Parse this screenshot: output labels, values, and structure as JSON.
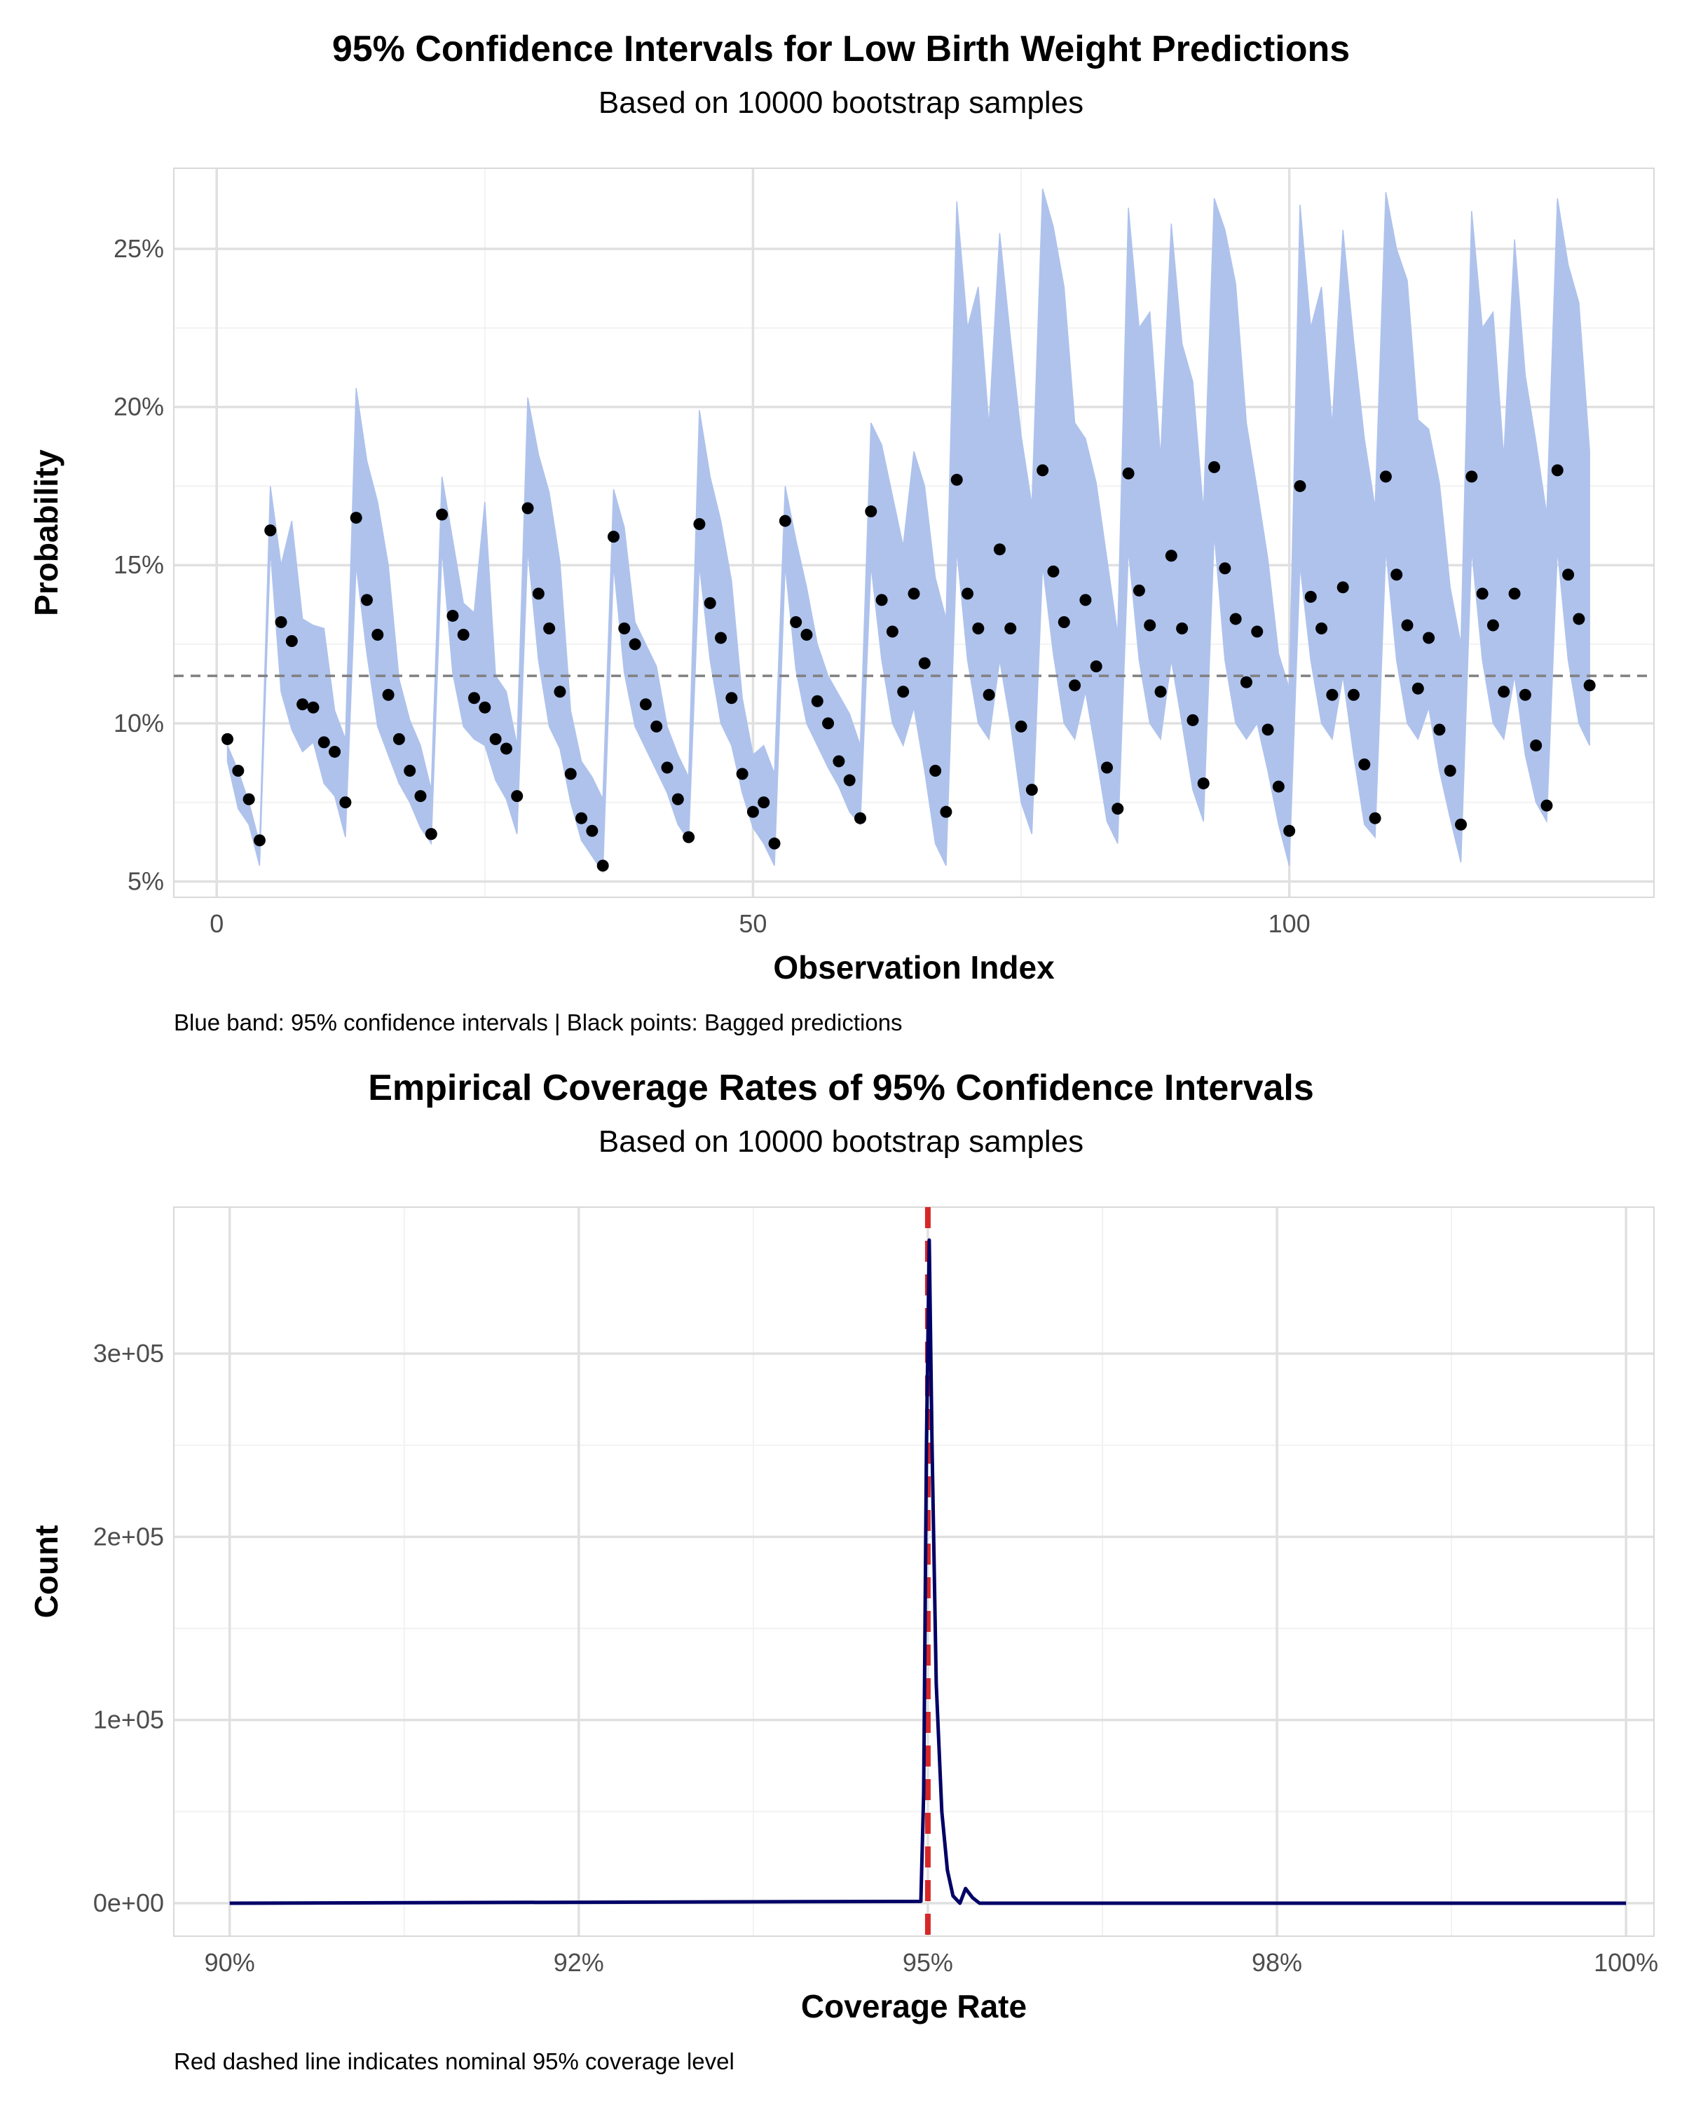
{
  "chart_data": [
    {
      "type": "scatter",
      "title": "95% Confidence Intervals for Low Birth Weight Predictions",
      "subtitle": "Based on 10000 bootstrap samples",
      "xlabel": "Observation Index",
      "ylabel": "Probability",
      "caption": "Blue band: 95% confidence intervals | Black points: Bagged predictions",
      "xlim": [
        -4,
        134
      ],
      "ylim": [
        0.045,
        0.2755
      ],
      "x_ticks": [
        0,
        50,
        100
      ],
      "x_tick_labels": [
        "0",
        "50",
        "100"
      ],
      "y_ticks": [
        0.05,
        0.1,
        0.15,
        0.2,
        0.25
      ],
      "y_tick_labels": [
        "5%",
        "10%",
        "15%",
        "20%",
        "25%"
      ],
      "reference_line": 0.115,
      "band_color": "#aec2ec",
      "point_color": "#000000",
      "refline_color": "#808080",
      "x": [
        1,
        2,
        3,
        4,
        5,
        6,
        7,
        8,
        9,
        10,
        11,
        12,
        13,
        14,
        15,
        16,
        17,
        18,
        19,
        20,
        21,
        22,
        23,
        24,
        25,
        26,
        27,
        28,
        29,
        30,
        31,
        32,
        33,
        34,
        35,
        36,
        37,
        38,
        39,
        40,
        41,
        42,
        43,
        44,
        45,
        46,
        47,
        48,
        49,
        50,
        51,
        52,
        53,
        54,
        55,
        56,
        57,
        58,
        59,
        60,
        61,
        62,
        63,
        64,
        65,
        66,
        67,
        68,
        69,
        70,
        71,
        72,
        73,
        74,
        75,
        76,
        77,
        78,
        79,
        80,
        81,
        82,
        83,
        84,
        85,
        86,
        87,
        88,
        89,
        90,
        91,
        92,
        93,
        94,
        95,
        96,
        97,
        98,
        99,
        100,
        101,
        102,
        103,
        104,
        105,
        106,
        107,
        108,
        109,
        110,
        111,
        112,
        113,
        114,
        115,
        116,
        117,
        118,
        119,
        120,
        121,
        122,
        123,
        124,
        125,
        126,
        127,
        128
      ],
      "prediction": [
        0.095,
        0.085,
        0.076,
        0.063,
        0.161,
        0.132,
        0.126,
        0.106,
        0.105,
        0.094,
        0.091,
        0.075,
        0.165,
        0.139,
        0.128,
        0.109,
        0.095,
        0.085,
        0.077,
        0.065,
        0.166,
        0.134,
        0.128,
        0.108,
        0.105,
        0.095,
        0.092,
        0.077,
        0.168,
        0.141,
        0.13,
        0.11,
        0.084,
        0.07,
        0.066,
        0.055,
        0.159,
        0.13,
        0.125,
        0.106,
        0.099,
        0.086,
        0.076,
        0.064,
        0.163,
        0.138,
        0.127,
        0.108,
        0.084,
        0.072,
        0.075,
        0.062,
        0.164,
        0.132,
        0.128,
        0.107,
        0.1,
        0.088,
        0.082,
        0.07,
        0.167,
        0.139,
        0.129,
        0.11,
        0.141,
        0.119,
        0.085,
        0.072,
        0.177,
        0.141,
        0.13,
        0.109,
        0.155,
        0.13,
        0.099,
        0.079,
        0.18,
        0.148,
        0.132,
        0.112,
        0.139,
        0.118,
        0.086,
        0.073,
        0.179,
        0.142,
        0.131,
        0.11,
        0.153,
        0.13,
        0.101,
        0.081,
        0.181,
        0.149,
        0.133,
        0.113,
        0.129,
        0.098,
        0.08,
        0.066,
        0.175,
        0.14,
        0.13,
        0.109,
        0.143,
        0.109,
        0.087,
        0.07,
        0.178,
        0.147,
        0.131,
        0.111,
        0.127,
        0.098,
        0.085,
        0.068,
        0.178,
        0.141,
        0.131,
        0.11,
        0.141,
        0.109,
        0.093,
        0.074,
        0.18,
        0.147,
        0.133,
        0.112
      ],
      "lower": [
        0.088,
        0.073,
        0.068,
        0.055,
        0.155,
        0.11,
        0.098,
        0.091,
        0.094,
        0.081,
        0.077,
        0.064,
        0.15,
        0.122,
        0.099,
        0.09,
        0.081,
        0.075,
        0.067,
        0.062,
        0.155,
        0.116,
        0.099,
        0.095,
        0.093,
        0.082,
        0.076,
        0.065,
        0.155,
        0.12,
        0.099,
        0.092,
        0.075,
        0.063,
        0.058,
        0.053,
        0.15,
        0.116,
        0.099,
        0.092,
        0.085,
        0.078,
        0.068,
        0.063,
        0.15,
        0.12,
        0.1,
        0.093,
        0.078,
        0.067,
        0.062,
        0.055,
        0.15,
        0.117,
        0.1,
        0.093,
        0.086,
        0.08,
        0.072,
        0.068,
        0.15,
        0.12,
        0.1,
        0.093,
        0.105,
        0.085,
        0.062,
        0.055,
        0.155,
        0.12,
        0.1,
        0.095,
        0.12,
        0.1,
        0.075,
        0.065,
        0.15,
        0.122,
        0.1,
        0.095,
        0.11,
        0.09,
        0.069,
        0.062,
        0.155,
        0.12,
        0.1,
        0.095,
        0.12,
        0.1,
        0.079,
        0.069,
        0.16,
        0.12,
        0.1,
        0.095,
        0.1,
        0.085,
        0.068,
        0.055,
        0.15,
        0.12,
        0.1,
        0.095,
        0.115,
        0.09,
        0.068,
        0.064,
        0.155,
        0.12,
        0.1,
        0.095,
        0.105,
        0.085,
        0.07,
        0.056,
        0.155,
        0.12,
        0.1,
        0.095,
        0.115,
        0.09,
        0.075,
        0.069,
        0.155,
        0.12,
        0.1,
        0.093
      ],
      "upper": [
        0.093,
        0.085,
        0.075,
        0.062,
        0.175,
        0.15,
        0.164,
        0.133,
        0.131,
        0.13,
        0.104,
        0.095,
        0.206,
        0.183,
        0.17,
        0.15,
        0.114,
        0.101,
        0.093,
        0.079,
        0.178,
        0.158,
        0.138,
        0.135,
        0.17,
        0.115,
        0.11,
        0.093,
        0.203,
        0.185,
        0.173,
        0.151,
        0.104,
        0.088,
        0.083,
        0.076,
        0.174,
        0.162,
        0.132,
        0.125,
        0.118,
        0.099,
        0.09,
        0.083,
        0.199,
        0.178,
        0.164,
        0.145,
        0.108,
        0.09,
        0.093,
        0.084,
        0.175,
        0.158,
        0.143,
        0.125,
        0.115,
        0.109,
        0.103,
        0.093,
        0.195,
        0.188,
        0.172,
        0.156,
        0.186,
        0.175,
        0.146,
        0.133,
        0.265,
        0.225,
        0.238,
        0.194,
        0.255,
        0.222,
        0.191,
        0.169,
        0.269,
        0.257,
        0.238,
        0.195,
        0.19,
        0.176,
        0.152,
        0.128,
        0.263,
        0.225,
        0.23,
        0.184,
        0.258,
        0.22,
        0.208,
        0.167,
        0.266,
        0.256,
        0.239,
        0.195,
        0.174,
        0.152,
        0.122,
        0.111,
        0.264,
        0.225,
        0.238,
        0.194,
        0.256,
        0.221,
        0.19,
        0.168,
        0.268,
        0.25,
        0.24,
        0.196,
        0.193,
        0.176,
        0.143,
        0.125,
        0.262,
        0.225,
        0.23,
        0.184,
        0.253,
        0.21,
        0.189,
        0.166,
        0.266,
        0.245,
        0.233,
        0.186
      ]
    },
    {
      "type": "line",
      "title": "Empirical Coverage Rates of 95% Confidence Intervals",
      "subtitle": "Based on 10000 bootstrap samples",
      "xlabel": "Coverage Rate",
      "ylabel": "Count",
      "caption": "Red dashed line indicates nominal 95% coverage level",
      "xlim": [
        0.896,
        1.002
      ],
      "ylim": [
        -18000,
        380000
      ],
      "x_ticks": [
        0.9,
        0.925,
        0.95,
        0.975,
        1.0
      ],
      "x_tick_labels": [
        "90%",
        "92%",
        "95%",
        "98%",
        "100%"
      ],
      "y_ticks": [
        0,
        100000,
        200000,
        300000
      ],
      "y_tick_labels": [
        "0e+00",
        "1e+05",
        "2e+05",
        "3e+05"
      ],
      "reference_line": 0.95,
      "line_color": "#000066",
      "refline_color": "#d62728",
      "x": [
        0.9,
        0.9495,
        0.9497,
        0.9499,
        0.9501,
        0.9503,
        0.9506,
        0.951,
        0.9514,
        0.9518,
        0.9523,
        0.9527,
        0.9532,
        0.9537,
        0.9545,
        0.956,
        1.0
      ],
      "y": [
        0,
        1000,
        60000,
        250000,
        362000,
        250000,
        120000,
        50000,
        18000,
        4000,
        0,
        8000,
        3000,
        0,
        0,
        0,
        0
      ]
    }
  ]
}
